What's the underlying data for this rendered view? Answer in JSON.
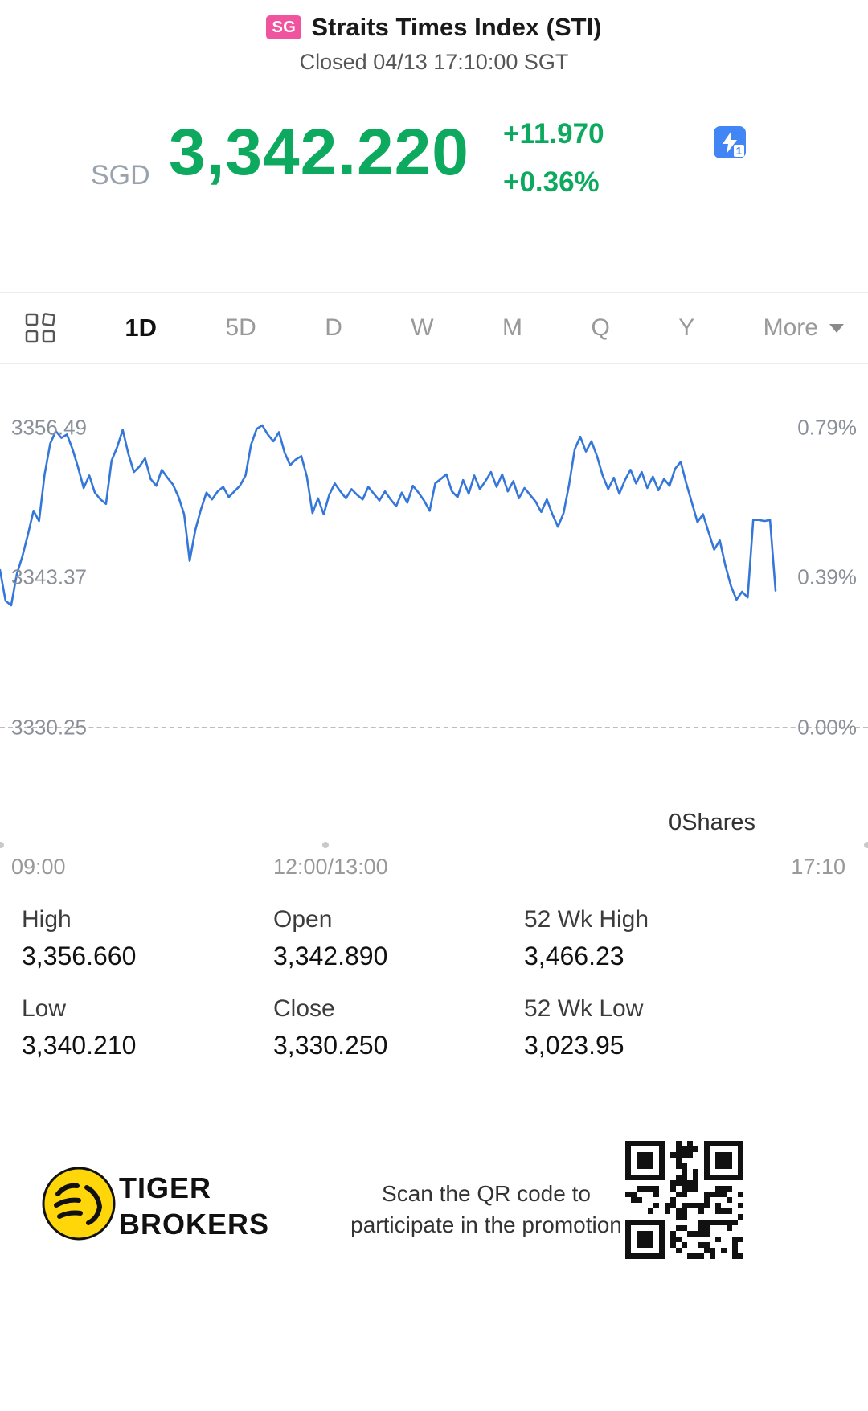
{
  "header": {
    "badge": "SG",
    "title": "Straits Times Index (STI)",
    "status": "Closed 04/13 17:10:00 SGT"
  },
  "quote": {
    "currency": "SGD",
    "price": "3,342.220",
    "change": "+11.970",
    "change_pct": "+0.36%",
    "flash_badge": "1"
  },
  "tabs": {
    "items": [
      "1D",
      "5D",
      "D",
      "W",
      "M",
      "Q",
      "Y"
    ],
    "active": "1D",
    "more_label": "More"
  },
  "chart_data": {
    "type": "line",
    "title": "STI 1D intraday price line",
    "ylim": [
      3330.25,
      3356.49
    ],
    "y_axis_left": [
      "3356.49",
      "3343.37",
      "3330.25"
    ],
    "y_axis_right": [
      "0.79%",
      "0.39%",
      "0.00%"
    ],
    "x_ticks": [
      "09:00",
      "12:00/13:00",
      "17:10"
    ],
    "prev_close": 3330.25,
    "last": 3342.22,
    "line_color": "#3577d9",
    "values": [
      3344.0,
      3341.3,
      3340.9,
      3343.6,
      3345.2,
      3347.1,
      3349.2,
      3348.3,
      3352.4,
      3355.1,
      3356.2,
      3355.6,
      3355.9,
      3354.6,
      3353.0,
      3351.2,
      3352.3,
      3350.8,
      3350.2,
      3349.8,
      3353.6,
      3354.8,
      3356.3,
      3354.2,
      3352.6,
      3353.1,
      3353.8,
      3352.0,
      3351.4,
      3352.8,
      3352.1,
      3351.5,
      3350.4,
      3348.9,
      3344.8,
      3347.5,
      3349.3,
      3350.8,
      3350.2,
      3350.9,
      3351.3,
      3350.4,
      3350.9,
      3351.4,
      3352.3,
      3355.0,
      3356.4,
      3356.7,
      3355.9,
      3355.3,
      3356.1,
      3354.3,
      3353.2,
      3353.7,
      3354.0,
      3352.2,
      3349.0,
      3350.3,
      3348.9,
      3350.6,
      3351.6,
      3350.9,
      3350.3,
      3351.1,
      3350.6,
      3350.2,
      3351.3,
      3350.7,
      3350.1,
      3350.9,
      3350.2,
      3349.6,
      3350.8,
      3349.9,
      3351.4,
      3350.8,
      3350.1,
      3349.2,
      3351.6,
      3352.0,
      3352.4,
      3350.9,
      3350.4,
      3351.9,
      3350.7,
      3352.3,
      3351.1,
      3351.8,
      3352.6,
      3351.3,
      3352.4,
      3350.9,
      3351.8,
      3350.3,
      3351.2,
      3350.6,
      3350.0,
      3349.1,
      3350.2,
      3348.9,
      3347.8,
      3349.0,
      3351.5,
      3354.6,
      3355.7,
      3354.4,
      3355.3,
      3354.0,
      3352.3,
      3351.1,
      3352.1,
      3350.7,
      3351.9,
      3352.8,
      3351.6,
      3352.6,
      3351.2,
      3352.2,
      3351.0,
      3352.0,
      3351.4,
      3352.9,
      3353.5,
      3351.6,
      3349.9,
      3348.2,
      3348.9,
      3347.3,
      3345.8,
      3346.6,
      3344.4,
      3342.6,
      3341.4,
      3342.1,
      3341.6,
      3348.4,
      3348.4,
      3348.3,
      3348.4,
      3342.2
    ]
  },
  "volume": {
    "label": "0Shares"
  },
  "stats": [
    {
      "label": "High",
      "value": "3,356.660"
    },
    {
      "label": "Open",
      "value": "3,342.890"
    },
    {
      "label": "52 Wk High",
      "value": "3,466.23"
    },
    {
      "label": "Low",
      "value": "3,340.210"
    },
    {
      "label": "Close",
      "value": "3,330.250"
    },
    {
      "label": "52 Wk Low",
      "value": "3,023.95"
    }
  ],
  "footer": {
    "brand_line1": "TIGER",
    "brand_line2": "BROKERS",
    "promo_line1": "Scan the QR code to",
    "promo_line2": "participate in the promotion"
  },
  "colors": {
    "up": "#0da95f",
    "line": "#3577d9",
    "badge": "#f0549e",
    "muted": "#999999"
  }
}
